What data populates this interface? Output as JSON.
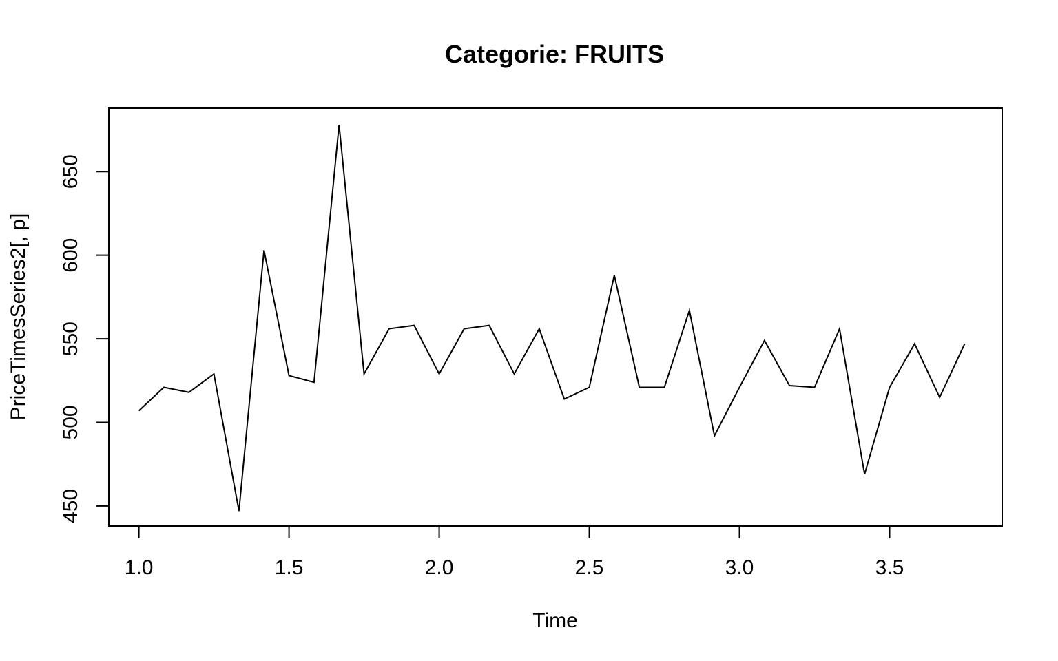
{
  "chart_data": {
    "type": "line",
    "title": "Categorie: FRUITS",
    "xlabel": "Time",
    "ylabel": "PriceTimesSeries2[, p]",
    "xlim": [
      0.9,
      3.875
    ],
    "ylim": [
      438,
      688
    ],
    "xticks": [
      1.0,
      1.5,
      2.0,
      2.5,
      3.0,
      3.5
    ],
    "xtick_labels": [
      "1.0",
      "1.5",
      "2.0",
      "2.5",
      "3.0",
      "3.5"
    ],
    "yticks": [
      450,
      500,
      550,
      600,
      650
    ],
    "ytick_labels": [
      "450",
      "500",
      "550",
      "600",
      "650"
    ],
    "grid": false,
    "legend": "none",
    "line_color": "#000000",
    "series": [
      {
        "x": [
          1.0,
          1.0833,
          1.1667,
          1.25,
          1.3333,
          1.4167,
          1.5,
          1.5833,
          1.6667,
          1.75,
          1.8333,
          1.9167,
          2.0,
          2.0833,
          2.1667,
          2.25,
          2.3333,
          2.4167,
          2.5,
          2.5833,
          2.6667,
          2.75,
          2.8333,
          2.9167,
          3.0,
          3.0833,
          3.1667,
          3.25,
          3.3333,
          3.4167,
          3.5,
          3.5833,
          3.6667,
          3.75
        ],
        "values": [
          507,
          521,
          518,
          529,
          447,
          603,
          528,
          524,
          678,
          529,
          556,
          558,
          529,
          556,
          558,
          529,
          556,
          514,
          521,
          588,
          521,
          521,
          567,
          492,
          521,
          549,
          522,
          521,
          556,
          469,
          521,
          547,
          515,
          547
        ]
      }
    ]
  }
}
